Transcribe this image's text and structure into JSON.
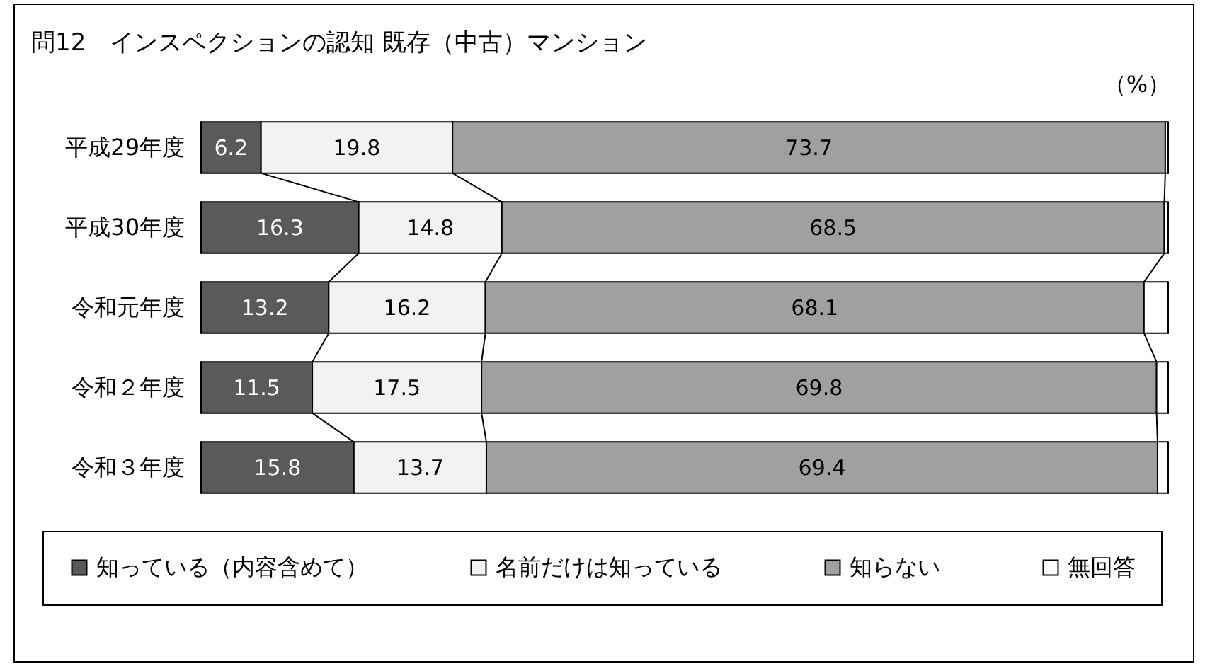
{
  "chart_data": {
    "type": "bar",
    "orientation": "horizontal",
    "stacked": true,
    "title": "問12　インスペクションの認知 既存（中古）マンション",
    "annotations": [
      "（%）"
    ],
    "categories": [
      "平成29年度",
      "平成30年度",
      "令和元年度",
      "令和２年度",
      "令和３年度"
    ],
    "series": [
      {
        "name": "知っている（内容含めて）",
        "color": "#5a5a5a",
        "values": [
          6.2,
          16.3,
          13.2,
          11.5,
          15.8
        ],
        "value_labels": [
          "6.2",
          "16.3",
          "13.2",
          "11.5",
          "15.8"
        ]
      },
      {
        "name": "名前だけは知っている",
        "color": "#f2f2f2",
        "values": [
          19.8,
          14.8,
          16.2,
          17.5,
          13.7
        ],
        "value_labels": [
          "19.8",
          "14.8",
          "16.2",
          "17.5",
          "13.7"
        ]
      },
      {
        "name": "知らない",
        "color": "#a0a0a0",
        "values": [
          73.7,
          68.5,
          68.1,
          69.8,
          69.4
        ],
        "value_labels": [
          "73.7",
          "68.5",
          "68.1",
          "69.8",
          "69.4"
        ]
      },
      {
        "name": "無回答",
        "color": "#ffffff",
        "values": [
          0.3,
          0.4,
          2.5,
          1.2,
          1.1
        ],
        "value_labels": [
          null,
          null,
          null,
          null,
          null
        ]
      }
    ],
    "xlim": [
      0,
      100
    ],
    "tick_labels": "y",
    "legend": "bottom"
  }
}
